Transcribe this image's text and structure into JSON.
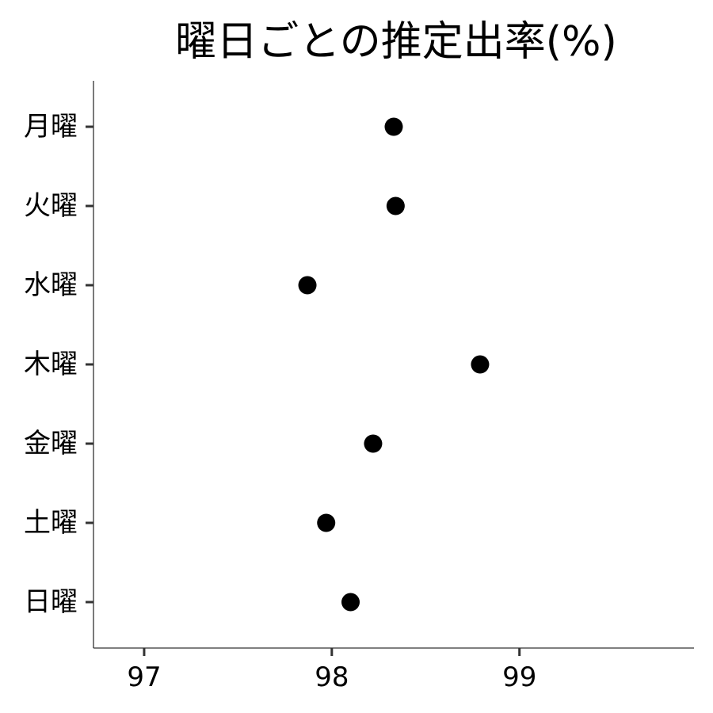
{
  "chart_data": {
    "type": "scatter",
    "title": "曜日ごとの推定出率(%)",
    "xlabel": "",
    "ylabel": "",
    "categories": [
      "月曜",
      "火曜",
      "水曜",
      "木曜",
      "金曜",
      "土曜",
      "日曜"
    ],
    "values": [
      98.33,
      98.34,
      97.87,
      98.79,
      98.22,
      97.97,
      98.1
    ],
    "x_ticks": [
      "97",
      "98",
      "99"
    ],
    "xlim": [
      96.73,
      99.93
    ],
    "grid": false,
    "point_color": "#000000",
    "axis_color": "#333333"
  }
}
